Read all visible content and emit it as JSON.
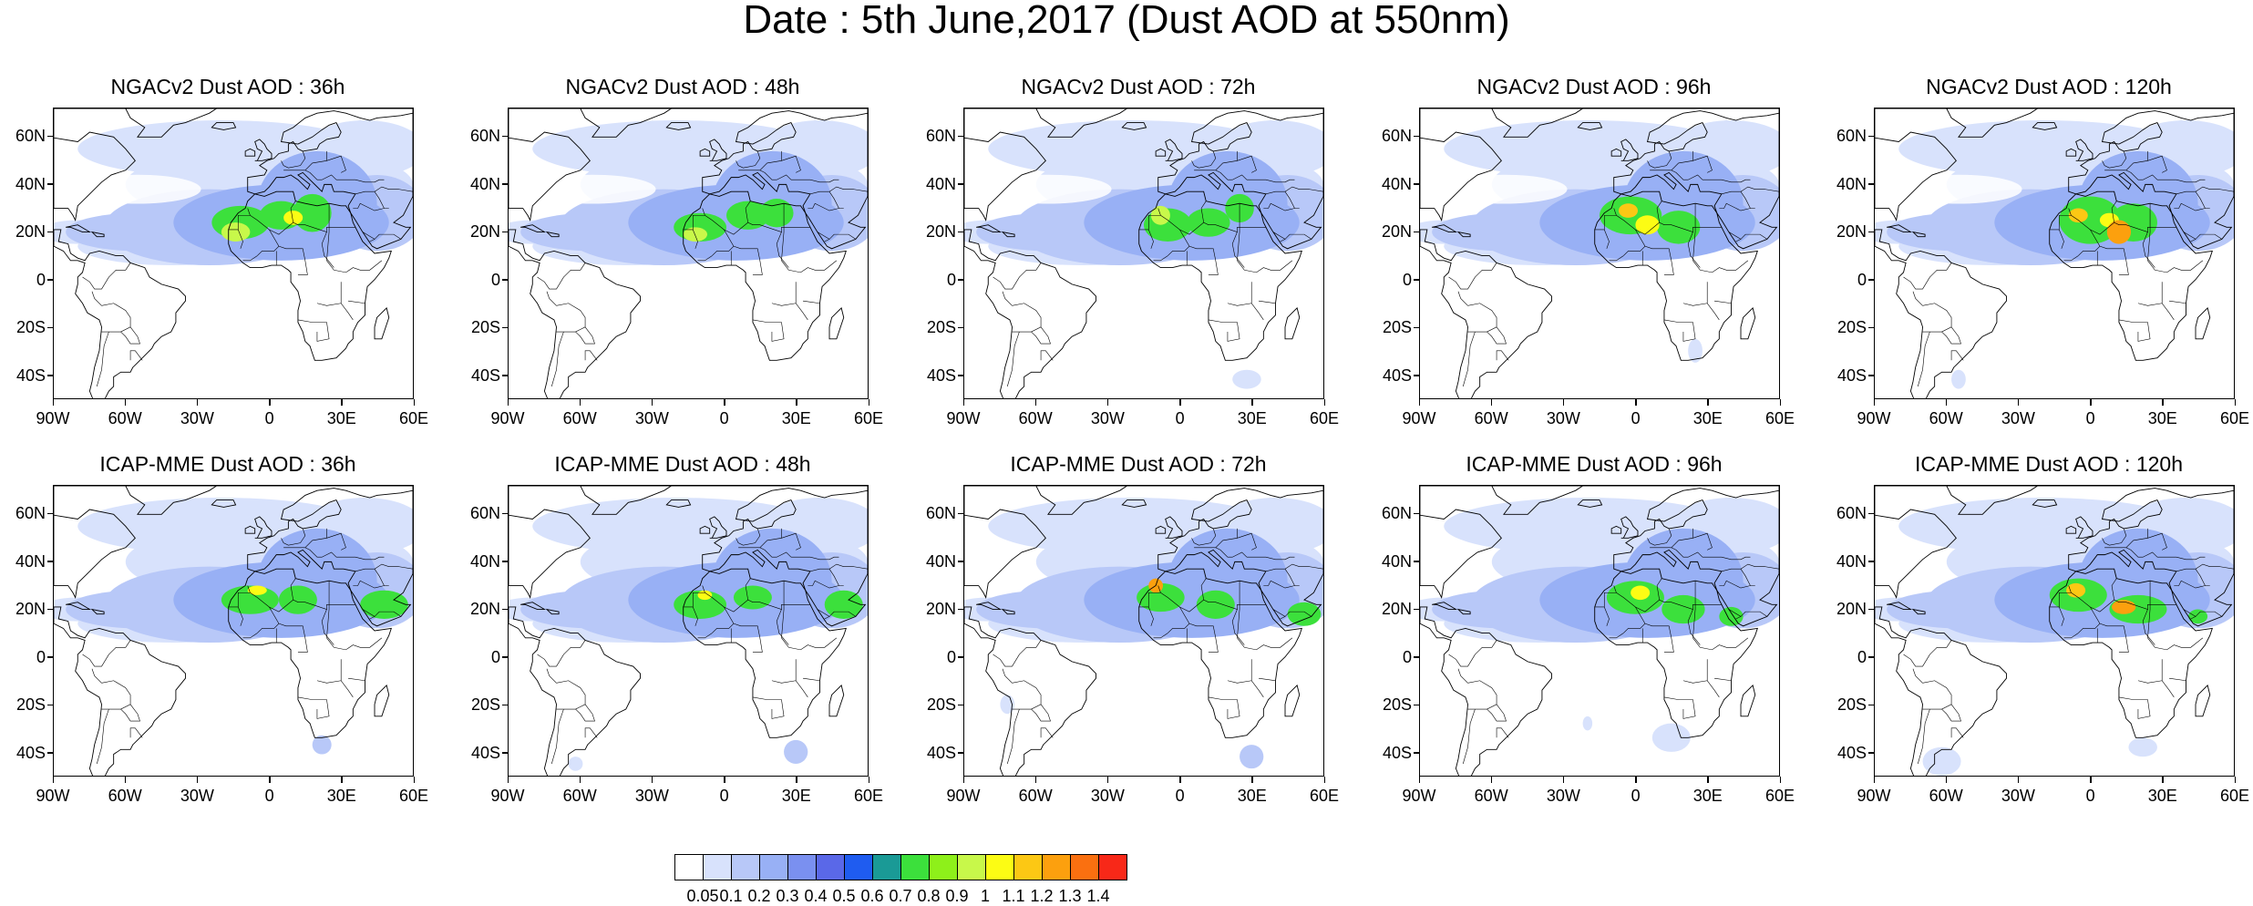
{
  "title": "Date : 5th June,2017 (Dust AOD at 550nm)",
  "lat_labels": [
    "60N",
    "40N",
    "20N",
    "0",
    "20S",
    "40S"
  ],
  "lon_labels": [
    "90W",
    "60W",
    "30W",
    "0",
    "30E",
    "60E"
  ],
  "panels": [
    {
      "title": "NGACv2 Dust AOD : 36h"
    },
    {
      "title": "NGACv2 Dust AOD : 48h"
    },
    {
      "title": "NGACv2 Dust AOD : 72h"
    },
    {
      "title": "NGACv2 Dust AOD : 96h"
    },
    {
      "title": "NGACv2 Dust AOD : 120h"
    },
    {
      "title": "ICAP-MME Dust AOD : 36h"
    },
    {
      "title": "ICAP-MME Dust AOD : 48h"
    },
    {
      "title": "ICAP-MME Dust AOD : 72h"
    },
    {
      "title": "ICAP-MME Dust AOD : 96h"
    },
    {
      "title": "ICAP-MME Dust AOD : 120h"
    }
  ],
  "colorbar": {
    "labels": [
      "0.05",
      "0.1",
      "0.2",
      "0.3",
      "0.4",
      "0.5",
      "0.6",
      "0.7",
      "0.8",
      "0.9",
      "1",
      "1.1",
      "1.2",
      "1.3",
      "1.4"
    ],
    "colors": [
      "#ffffff",
      "#d8e2fc",
      "#b8c8f8",
      "#98b0f5",
      "#7a90f0",
      "#5a68e8",
      "#1f5cf0",
      "#1a9a96",
      "#3ce03c",
      "#8ef01a",
      "#c8f84a",
      "#fcfc14",
      "#fcc814",
      "#fca00e",
      "#fa7010",
      "#f82818"
    ]
  }
}
